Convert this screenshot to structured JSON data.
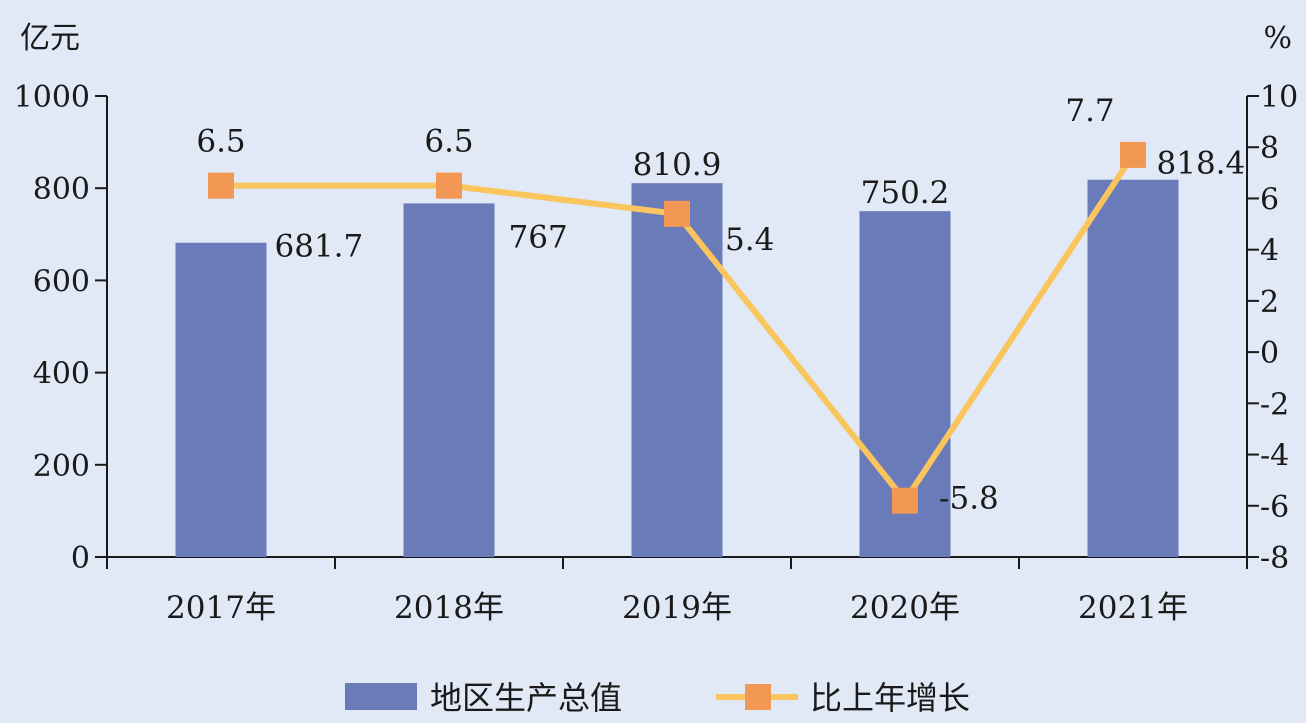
{
  "chart_data": {
    "type": "bar",
    "categories": [
      "2017年",
      "2018年",
      "2019年",
      "2020年",
      "2021年"
    ],
    "series": [
      {
        "name": "地区生产总值",
        "type": "bar",
        "axis": "left",
        "values": [
          681.7,
          767,
          810.9,
          750.2,
          818.4
        ],
        "labels": [
          "681.7",
          "767",
          "810.9",
          "750.2",
          "818.4"
        ],
        "color": "#6a7bba"
      },
      {
        "name": "比上年增长",
        "type": "line",
        "axis": "right",
        "values": [
          6.5,
          6.5,
          5.4,
          -5.8,
          7.7
        ],
        "labels": [
          "6.5",
          "6.5",
          "5.4",
          "-5.8",
          "7.7"
        ],
        "line_color": "#f9c55c",
        "marker_color": "#f39755"
      }
    ],
    "y_left": {
      "unit": "亿元",
      "ylim": [
        0,
        1000
      ],
      "ticks": [
        0,
        200,
        400,
        600,
        800,
        1000
      ],
      "tick_labels": [
        "0",
        "200",
        "400",
        "600",
        "800",
        "1000"
      ]
    },
    "y_right": {
      "unit": "%",
      "ylim": [
        -8,
        10
      ],
      "ticks": [
        -8,
        -6,
        -4,
        -2,
        0,
        2,
        4,
        6,
        8,
        10
      ],
      "tick_labels": [
        "-8",
        "-6",
        "-4",
        "-2",
        "0",
        "2",
        "4",
        "6",
        "8",
        "10"
      ]
    },
    "legend_position": "bottom",
    "grid": false,
    "background": "#e1e8f6"
  }
}
